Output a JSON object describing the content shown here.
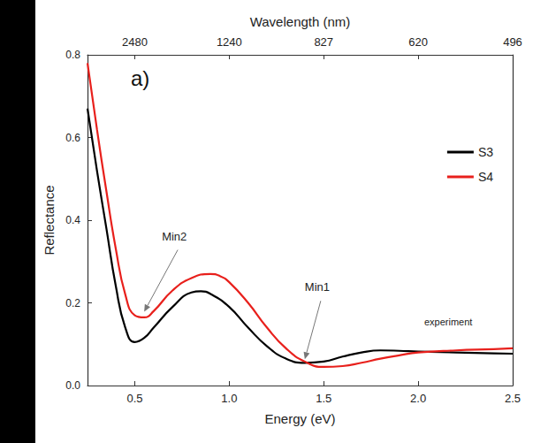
{
  "chart_data": {
    "type": "line",
    "panel_label": "a)",
    "xlabel": "Energy (eV)",
    "ylabel": "Reflectance",
    "x2label": "Wavelength (nm)",
    "xlim": [
      0.25,
      2.5
    ],
    "xticks": [
      0.5,
      {
        "value": 1,
        "label": "1.0"
      },
      1.5,
      {
        "value": 2,
        "label": "2.0"
      },
      2.5
    ],
    "x2lim": [
      0.25,
      2.5
    ],
    "x2ticks": [
      {
        "value": 0.5,
        "label": "2480"
      },
      {
        "value": 1,
        "label": "1240"
      },
      {
        "value": 1.5,
        "label": "827"
      },
      {
        "value": 2,
        "label": "620"
      },
      {
        "value": 2.5,
        "label": "496"
      }
    ],
    "ylim": [
      0,
      0.8
    ],
    "yticks": [
      {
        "value": 0,
        "label": "0.0"
      },
      0.2,
      0.4,
      0.6,
      0.8
    ],
    "grid": false,
    "legend": "right",
    "annotations": [
      {
        "text": "Min2",
        "x": 0.55,
        "y": 0.17
      },
      {
        "text": "Min1",
        "x": 1.4,
        "y": 0.055
      },
      {
        "text": "experiment"
      }
    ],
    "series": [
      {
        "name": "S3",
        "color": "#000000",
        "x": [
          0.25,
          0.3,
          0.35,
          0.4,
          0.45,
          0.5,
          0.55,
          0.6,
          0.7,
          0.8,
          0.85,
          0.9,
          1.0,
          1.1,
          1.2,
          1.3,
          1.4,
          1.5,
          1.6,
          1.7,
          1.8,
          1.9,
          2.0,
          2.2,
          2.4,
          2.5
        ],
        "values": [
          0.67,
          0.52,
          0.38,
          0.24,
          0.14,
          0.105,
          0.115,
          0.14,
          0.19,
          0.225,
          0.228,
          0.222,
          0.19,
          0.14,
          0.095,
          0.065,
          0.055,
          0.058,
          0.07,
          0.08,
          0.085,
          0.084,
          0.082,
          0.08,
          0.078,
          0.077
        ]
      },
      {
        "name": "S4",
        "color": "#e8201c",
        "x": [
          0.25,
          0.3,
          0.35,
          0.4,
          0.45,
          0.5,
          0.55,
          0.6,
          0.7,
          0.8,
          0.9,
          0.95,
          1.0,
          1.1,
          1.2,
          1.3,
          1.4,
          1.5,
          1.6,
          1.7,
          1.8,
          1.9,
          2.0,
          2.2,
          2.4,
          2.5
        ],
        "values": [
          0.78,
          0.62,
          0.47,
          0.33,
          0.22,
          0.17,
          0.165,
          0.18,
          0.23,
          0.26,
          0.27,
          0.265,
          0.25,
          0.2,
          0.14,
          0.09,
          0.058,
          0.045,
          0.047,
          0.055,
          0.065,
          0.073,
          0.08,
          0.085,
          0.088,
          0.09
        ]
      }
    ]
  }
}
